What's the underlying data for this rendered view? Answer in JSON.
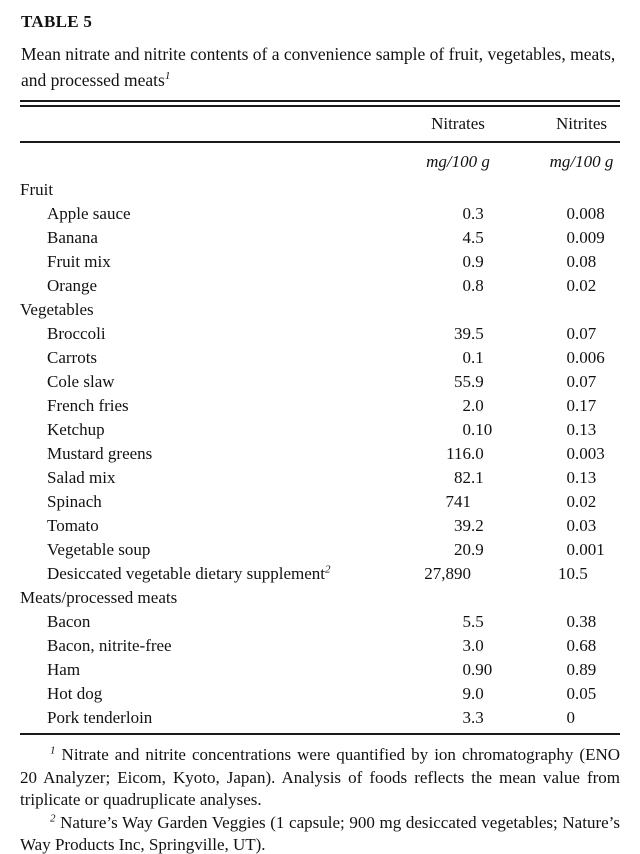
{
  "table": {
    "label": "TABLE 5",
    "caption": "Mean nitrate and nitrite contents of a convenience sample of fruit, vegetables, meats, and processed meats",
    "caption_footnote_marker": "1",
    "columns": {
      "nitrates": "Nitrates",
      "nitrites": "Nitrites"
    },
    "units": {
      "nitrates": "mg/100 g",
      "nitrites": "mg/100 g"
    },
    "rows": [
      {
        "label": "Fruit"
      },
      {
        "label": "Apple sauce",
        "nitrates": "0.3",
        "nitrites": "0.008"
      },
      {
        "label": "Banana",
        "nitrates": "4.5",
        "nitrites": "0.009"
      },
      {
        "label": "Fruit mix",
        "nitrates": "0.9",
        "nitrites": "0.08"
      },
      {
        "label": "Orange",
        "nitrates": "0.8",
        "nitrites": "0.02"
      },
      {
        "label": "Vegetables"
      },
      {
        "label": "Broccoli",
        "nitrates": "39.5",
        "nitrites": "0.07"
      },
      {
        "label": "Carrots",
        "nitrates": "0.1",
        "nitrites": "0.006"
      },
      {
        "label": "Cole slaw",
        "nitrates": "55.9",
        "nitrites": "0.07"
      },
      {
        "label": "French fries",
        "nitrates": "2.0",
        "nitrites": "0.17"
      },
      {
        "label": "Ketchup",
        "nitrates": "0.10",
        "nitrites": "0.13"
      },
      {
        "label": "Mustard greens",
        "nitrates": "116.0",
        "nitrites": "0.003"
      },
      {
        "label": "Salad mix",
        "nitrates": "82.1",
        "nitrites": "0.13"
      },
      {
        "label": "Spinach",
        "nitrates": "741",
        "nitrites": "0.02"
      },
      {
        "label": "Tomato",
        "nitrates": "39.2",
        "nitrites": "0.03"
      },
      {
        "label": "Vegetable soup",
        "nitrates": "20.9",
        "nitrites": "0.001"
      },
      {
        "label": "Desiccated vegetable dietary supplement",
        "sup": "2",
        "nitrates": "27,890",
        "nitrites": "10.5"
      },
      {
        "label": "Meats/processed meats"
      },
      {
        "label": "Bacon",
        "nitrates": "5.5",
        "nitrites": "0.38"
      },
      {
        "label": "Bacon, nitrite-free",
        "nitrates": "3.0",
        "nitrites": "0.68"
      },
      {
        "label": "Ham",
        "nitrates": "0.90",
        "nitrites": "0.89"
      },
      {
        "label": "Hot dog",
        "nitrates": "9.0",
        "nitrites": "0.05"
      },
      {
        "label": "Pork tenderloin",
        "nitrates": "3.3",
        "nitrites": "0"
      }
    ]
  },
  "footnotes": [
    {
      "marker": "1",
      "text": "Nitrate and nitrite concentrations were quantified by ion chromatography (ENO 20 Analyzer; Eicom, Kyoto, Japan). Analysis of foods reflects the mean value from triplicate or quadruplicate analyses."
    },
    {
      "marker": "2",
      "text": "Nature’s Way Garden Veggies (1 capsule; 900 mg desiccated vegetables; Nature’s Way Products Inc, Springville, UT)."
    }
  ],
  "colors": {
    "text": "#121212",
    "rule": "#1a1a1a",
    "background": "#ffffff"
  }
}
